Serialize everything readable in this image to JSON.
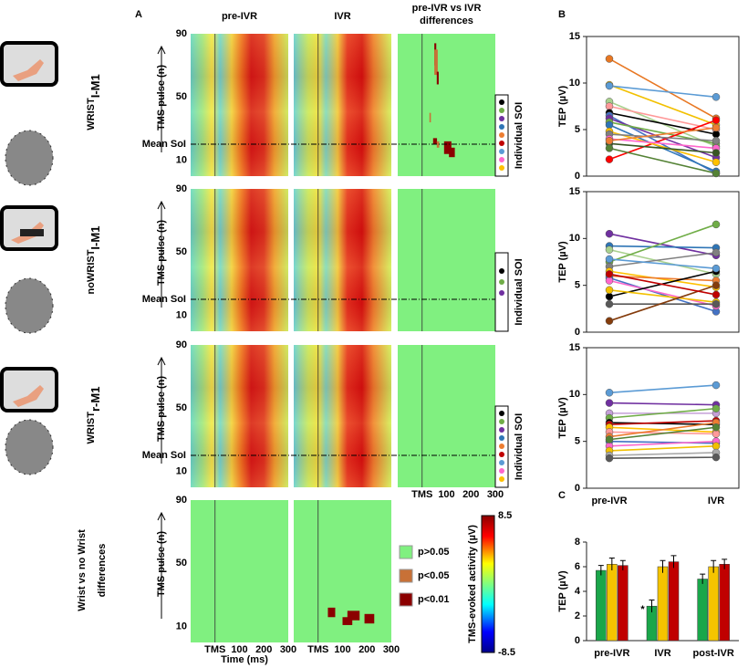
{
  "panel_labels": [
    "A",
    "B",
    "C"
  ],
  "row_labels": [
    {
      "text": "WRIST",
      "sub": "I-M1",
      "color": "#1aa64a"
    },
    {
      "text": "noWRIST",
      "sub": "I-M1",
      "color": "#f5c400"
    },
    {
      "text": "WRIST",
      "sub": "r-M1",
      "color": "#c8102e"
    },
    {
      "lines": [
        "Wrist vs no Wrist",
        "differences"
      ],
      "color": "#000000"
    }
  ],
  "heatmap": {
    "column_titles": [
      [
        "pre-IVR"
      ],
      [
        "IVR"
      ],
      [
        "pre-IVR vs IVR",
        "differences"
      ]
    ],
    "ylabel": "TMS pulse (n)",
    "xlabel": "Time (ms)",
    "xlim": [
      -100,
      300
    ],
    "ylim": [
      0,
      90
    ],
    "yticks": [
      90,
      50,
      10
    ],
    "xticks": [
      {
        "value": 0,
        "label": "TMS"
      },
      100,
      200,
      300
    ],
    "mean_label": "Mean SoI",
    "individual_label": "Individual SOI"
  },
  "colorbar": {
    "label": "TMS-evoked activity (µV)",
    "lim": [
      -8.5,
      8.5
    ],
    "ticks": [
      8.5,
      -8.5
    ]
  },
  "significance_legend": [
    {
      "label": "p>0.05",
      "color": "#80f080"
    },
    {
      "label": "p<0.05",
      "color": "#c87137"
    },
    {
      "label": "p<0.01",
      "color": "#8b0000"
    }
  ],
  "chart_data": [
    {
      "type": "line",
      "ylabel": "TEP (µV)",
      "ylim": [
        0,
        15
      ],
      "yticks": [
        0,
        5,
        10,
        15
      ],
      "series": [
        {
          "color": "#e87722",
          "values": [
            12.6,
            6.2
          ]
        },
        {
          "color": "#f2c000",
          "values": [
            9.8,
            5.5
          ]
        },
        {
          "color": "#5b9bd5",
          "values": [
            9.7,
            8.5
          ]
        },
        {
          "color": "#a9d18e",
          "values": [
            8.0,
            3.2
          ]
        },
        {
          "color": "#ff9999",
          "values": [
            7.5,
            5.0
          ]
        },
        {
          "color": "#000000",
          "values": [
            6.8,
            4.5
          ]
        },
        {
          "color": "#4472c4",
          "values": [
            6.5,
            0.3
          ]
        },
        {
          "color": "#7030a0",
          "values": [
            6.2,
            2.0
          ]
        },
        {
          "color": "#70ad47",
          "values": [
            5.8,
            3.5
          ]
        },
        {
          "color": "#2e75b6",
          "values": [
            5.5,
            0.5
          ]
        },
        {
          "color": "#ff0000",
          "values": [
            1.8,
            6.0
          ]
        },
        {
          "color": "#ffc000",
          "values": [
            4.8,
            1.5
          ]
        },
        {
          "color": "#808080",
          "values": [
            4.5,
            3.8
          ]
        },
        {
          "color": "#ff66cc",
          "values": [
            4.0,
            3.0
          ]
        },
        {
          "color": "#375623",
          "values": [
            3.5,
            2.5
          ]
        },
        {
          "color": "#548235",
          "values": [
            3.0,
            0.3
          ]
        },
        {
          "color": "#ed7d31",
          "values": [
            3.8,
            5.2
          ]
        }
      ]
    },
    {
      "type": "line",
      "ylabel": "TEP (µV)",
      "ylim": [
        0,
        15
      ],
      "yticks": [
        0,
        5,
        10,
        15
      ],
      "series": [
        {
          "color": "#7030a0",
          "values": [
            10.5,
            8.2
          ]
        },
        {
          "color": "#2e75b6",
          "values": [
            9.2,
            9.0
          ]
        },
        {
          "color": "#a9d18e",
          "values": [
            8.8,
            6.2
          ]
        },
        {
          "color": "#70ad47",
          "values": [
            7.5,
            11.5
          ]
        },
        {
          "color": "#808080",
          "values": [
            7.0,
            8.5
          ]
        },
        {
          "color": "#ffc000",
          "values": [
            6.5,
            4.8
          ]
        },
        {
          "color": "#ed7d31",
          "values": [
            6.0,
            5.5
          ]
        },
        {
          "color": "#4472c4",
          "values": [
            5.8,
            2.2
          ]
        },
        {
          "color": "#ff66cc",
          "values": [
            5.5,
            2.8
          ]
        },
        {
          "color": "#000000",
          "values": [
            3.8,
            6.5
          ]
        },
        {
          "color": "#f2c000",
          "values": [
            4.5,
            3.2
          ]
        },
        {
          "color": "#595959",
          "values": [
            3.0,
            3.0
          ]
        },
        {
          "color": "#843c0c",
          "values": [
            1.2,
            5.0
          ]
        },
        {
          "color": "#c00000",
          "values": [
            6.2,
            4.0
          ]
        },
        {
          "color": "#5b9bd5",
          "values": [
            7.8,
            6.8
          ]
        }
      ]
    },
    {
      "type": "line",
      "ylabel": "TEP (µV)",
      "ylim": [
        0,
        15
      ],
      "yticks": [
        0,
        5,
        10,
        15
      ],
      "categories": [
        "pre-IVR",
        "IVR"
      ],
      "series": [
        {
          "color": "#5b9bd5",
          "values": [
            10.2,
            11.0
          ]
        },
        {
          "color": "#7030a0",
          "values": [
            9.1,
            8.9
          ]
        },
        {
          "color": "#c5a0d8",
          "values": [
            8.0,
            8.0
          ]
        },
        {
          "color": "#70ad47",
          "values": [
            7.5,
            8.5
          ]
        },
        {
          "color": "#000000",
          "values": [
            7.0,
            6.8
          ]
        },
        {
          "color": "#c00000",
          "values": [
            6.8,
            7.2
          ]
        },
        {
          "color": "#ffc000",
          "values": [
            6.5,
            6.0
          ]
        },
        {
          "color": "#ff9999",
          "values": [
            6.0,
            5.8
          ]
        },
        {
          "color": "#ed7d31",
          "values": [
            5.5,
            7.0
          ]
        },
        {
          "color": "#4472c4",
          "values": [
            5.0,
            4.8
          ]
        },
        {
          "color": "#ff66cc",
          "values": [
            4.5,
            5.0
          ]
        },
        {
          "color": "#f2c000",
          "values": [
            4.0,
            4.5
          ]
        },
        {
          "color": "#a9a9a9",
          "values": [
            3.5,
            3.8
          ]
        },
        {
          "color": "#595959",
          "values": [
            3.2,
            3.3
          ]
        },
        {
          "color": "#548235",
          "values": [
            5.2,
            6.5
          ]
        }
      ]
    },
    {
      "type": "bar",
      "ylabel": "TEP (µV)",
      "ylim": [
        0,
        8
      ],
      "yticks": [
        0,
        2,
        4,
        6,
        8
      ],
      "categories": [
        "pre-IVR",
        "IVR",
        "post-IVR"
      ],
      "annotation": "*",
      "series": [
        {
          "color": "#1aa64a",
          "values": [
            5.7,
            2.8,
            5.0
          ],
          "errors": [
            0.4,
            0.5,
            0.4
          ]
        },
        {
          "color": "#f5c400",
          "values": [
            6.2,
            6.0,
            6.0
          ],
          "errors": [
            0.5,
            0.5,
            0.5
          ]
        },
        {
          "color": "#c00000",
          "values": [
            6.1,
            6.4,
            6.2
          ],
          "errors": [
            0.4,
            0.5,
            0.4
          ]
        }
      ]
    }
  ]
}
